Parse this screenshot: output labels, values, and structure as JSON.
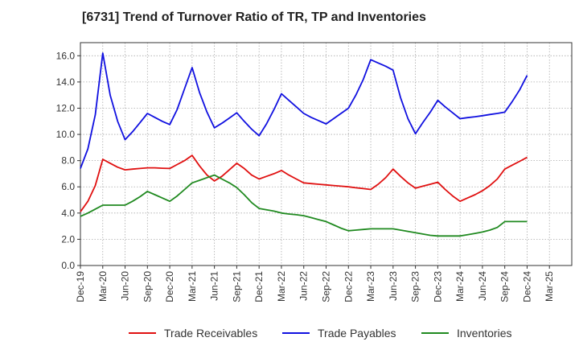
{
  "chart_data": {
    "type": "line",
    "title": "[6731]  Trend of Turnover Ratio of TR, TP and Inventories",
    "xlabel": "",
    "ylabel": "",
    "ylim": [
      0,
      17
    ],
    "yticks": [
      "0.0",
      "2.0",
      "4.0",
      "6.0",
      "8.0",
      "10.0",
      "12.0",
      "14.0",
      "16.0"
    ],
    "yticks_values": [
      0,
      2,
      4,
      6,
      8,
      10,
      12,
      14,
      16
    ],
    "xticks": [
      "Dec-19",
      "Mar-20",
      "Jun-20",
      "Sep-20",
      "Dec-20",
      "Mar-21",
      "Jun-21",
      "Sep-21",
      "Dec-21",
      "Mar-22",
      "Jun-22",
      "Sep-22",
      "Dec-22",
      "Mar-23",
      "Jun-23",
      "Sep-23",
      "Dec-23",
      "Mar-24",
      "Jun-24",
      "Sep-24",
      "Dec-24",
      "Mar-25"
    ],
    "x": [
      "Dec-19",
      "Jan-20",
      "Feb-20",
      "Mar-20",
      "Apr-20",
      "May-20",
      "Jun-20",
      "Jul-20",
      "Aug-20",
      "Sep-20",
      "Oct-20",
      "Nov-20",
      "Dec-20",
      "Jan-21",
      "Feb-21",
      "Mar-21",
      "Apr-21",
      "May-21",
      "Jun-21",
      "Jul-21",
      "Aug-21",
      "Sep-21",
      "Oct-21",
      "Nov-21",
      "Dec-21",
      "Jan-22",
      "Feb-22",
      "Mar-22",
      "Apr-22",
      "May-22",
      "Jun-22",
      "Jul-22",
      "Aug-22",
      "Sep-22",
      "Oct-22",
      "Nov-22",
      "Dec-22",
      "Jan-23",
      "Feb-23",
      "Mar-23",
      "Apr-23",
      "May-23",
      "Jun-23",
      "Jul-23",
      "Aug-23",
      "Sep-23",
      "Oct-23",
      "Nov-23",
      "Dec-23",
      "Jan-24",
      "Feb-24",
      "Mar-24",
      "Apr-24",
      "May-24",
      "Jun-24",
      "Jul-24",
      "Aug-24",
      "Sep-24",
      "Oct-24",
      "Nov-24",
      "Dec-24"
    ],
    "series": [
      {
        "name": "Trade Receivables",
        "color": "#e01010",
        "values": [
          4.1,
          4.9,
          6.1,
          8.1,
          7.8,
          7.5,
          7.3,
          7.35,
          7.4,
          7.45,
          7.45,
          7.42,
          7.4,
          7.7,
          8.0,
          8.4,
          7.6,
          6.9,
          6.45,
          6.8,
          7.3,
          7.8,
          7.4,
          6.9,
          6.6,
          6.8,
          7.0,
          7.25,
          6.9,
          6.6,
          6.3,
          6.25,
          6.2,
          6.15,
          6.1,
          6.05,
          6.0,
          5.93,
          5.87,
          5.8,
          6.2,
          6.7,
          7.35,
          6.8,
          6.3,
          5.9,
          6.05,
          6.2,
          6.35,
          5.8,
          5.3,
          4.9,
          5.15,
          5.4,
          5.7,
          6.1,
          6.6,
          7.35,
          7.65,
          7.95,
          8.25
        ]
      },
      {
        "name": "Trade Payables",
        "color": "#1010e0",
        "values": [
          7.4,
          8.9,
          11.5,
          16.2,
          13.0,
          11.0,
          9.6,
          10.2,
          10.9,
          11.6,
          11.3,
          11.0,
          10.75,
          11.9,
          13.5,
          15.1,
          13.2,
          11.7,
          10.5,
          10.85,
          11.25,
          11.65,
          11.0,
          10.4,
          9.9,
          10.8,
          11.9,
          13.1,
          12.6,
          12.1,
          11.6,
          11.3,
          11.05,
          10.8,
          11.2,
          11.6,
          12.0,
          13.0,
          14.2,
          15.7,
          15.45,
          15.2,
          14.9,
          12.8,
          11.2,
          10.05,
          10.9,
          11.7,
          12.6,
          12.1,
          11.65,
          11.2,
          11.28,
          11.35,
          11.43,
          11.52,
          11.6,
          11.7,
          12.5,
          13.4,
          14.5
        ]
      },
      {
        "name": "Inventories",
        "color": "#208a20",
        "values": [
          3.75,
          4.0,
          4.3,
          4.6,
          4.6,
          4.6,
          4.6,
          4.9,
          5.25,
          5.65,
          5.4,
          5.15,
          4.9,
          5.3,
          5.8,
          6.3,
          6.5,
          6.7,
          6.9,
          6.6,
          6.3,
          5.95,
          5.4,
          4.8,
          4.35,
          4.25,
          4.15,
          4.0,
          3.93,
          3.87,
          3.8,
          3.65,
          3.5,
          3.35,
          3.1,
          2.85,
          2.65,
          2.7,
          2.75,
          2.8,
          2.8,
          2.8,
          2.8,
          2.7,
          2.6,
          2.5,
          2.4,
          2.3,
          2.25,
          2.25,
          2.25,
          2.25,
          2.35,
          2.45,
          2.55,
          2.7,
          2.9,
          3.35,
          3.35,
          3.35,
          3.35
        ]
      }
    ],
    "legend": {
      "position": "bottom"
    },
    "grid": {
      "horizontal": true,
      "vertical": true,
      "style": "dotted"
    }
  }
}
